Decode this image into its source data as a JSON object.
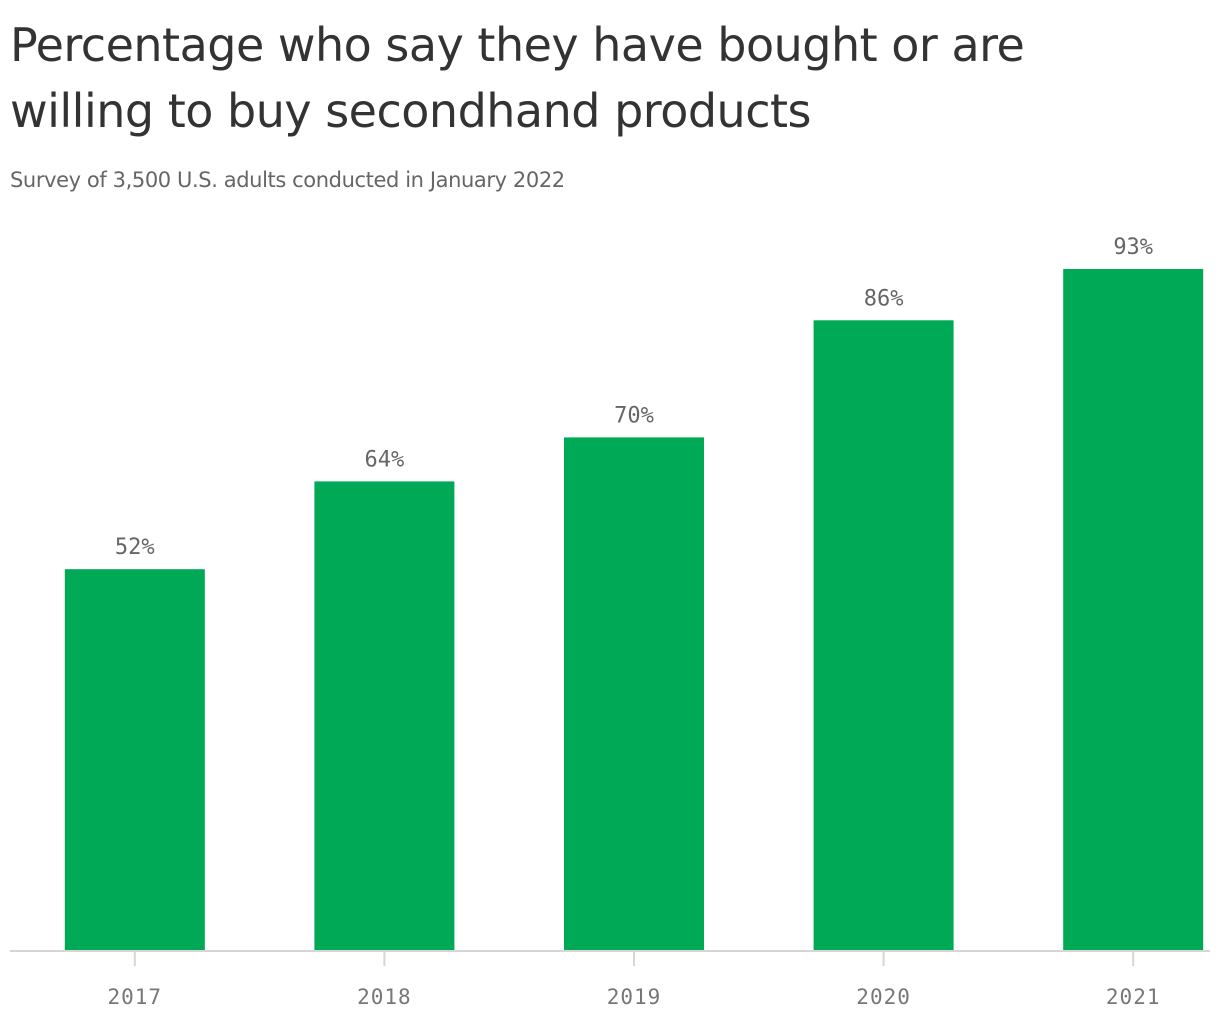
{
  "chart_data": {
    "type": "bar",
    "title": "Percentage who say they have bought or are willing to buy secondhand products",
    "subtitle": "Survey of 3,500 U.S. adults conducted in January 2022",
    "categories": [
      "2017",
      "2018",
      "2019",
      "2020",
      "2021"
    ],
    "values": [
      52,
      64,
      70,
      86,
      93
    ],
    "value_labels": [
      "52%",
      "64%",
      "70%",
      "86%",
      "93%"
    ],
    "ylim": [
      0,
      93
    ],
    "grid": false,
    "legend": "none",
    "colors": {
      "bar": "#00a955",
      "title": "#333333",
      "subtitle": "#666666",
      "label": "#666666",
      "axis": "#d6d6d6"
    }
  }
}
